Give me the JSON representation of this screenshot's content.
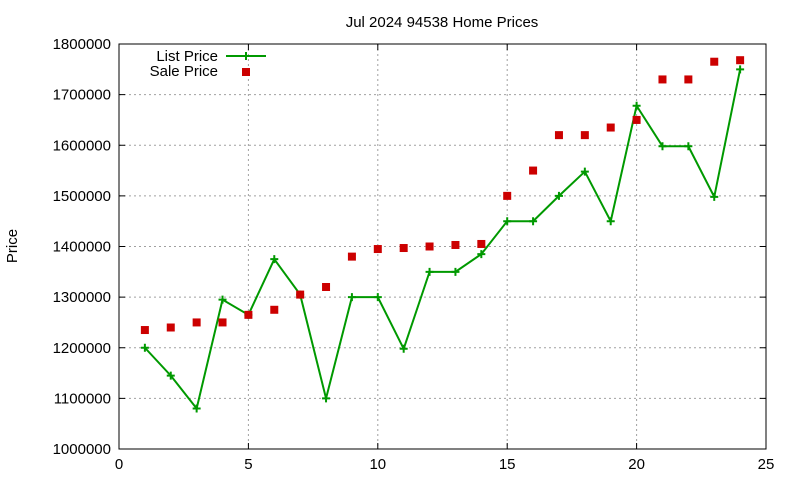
{
  "chart_data": {
    "type": "line",
    "title": "Jul 2024 94538 Home Prices",
    "xlabel": "",
    "ylabel": "Price",
    "xlim": [
      0,
      25
    ],
    "ylim": [
      1000000,
      1800000
    ],
    "x_ticks": [
      0,
      5,
      10,
      15,
      20,
      25
    ],
    "y_ticks": [
      1000000,
      1100000,
      1200000,
      1300000,
      1400000,
      1500000,
      1600000,
      1700000,
      1800000
    ],
    "grid": true,
    "legend_position": "top-left",
    "series": [
      {
        "name": "List Price",
        "style": "line+plus-markers",
        "color": "#009900",
        "x": [
          1,
          2,
          3,
          4,
          5,
          6,
          7,
          8,
          9,
          10,
          11,
          12,
          13,
          14,
          15,
          16,
          17,
          18,
          19,
          20,
          21,
          22,
          23,
          24
        ],
        "y": [
          1200000,
          1145000,
          1080000,
          1295000,
          1265000,
          1375000,
          1305000,
          1100000,
          1300000,
          1300000,
          1198000,
          1350000,
          1350000,
          1385000,
          1450000,
          1450000,
          1500000,
          1548000,
          1450000,
          1678000,
          1598000,
          1598000,
          1498000,
          1750000
        ]
      },
      {
        "name": "Sale Price",
        "style": "square-markers",
        "color": "#cc0000",
        "x": [
          1,
          2,
          3,
          4,
          5,
          6,
          7,
          8,
          9,
          10,
          11,
          12,
          13,
          14,
          15,
          16,
          17,
          18,
          19,
          20,
          21,
          22,
          23,
          24
        ],
        "y": [
          1235000,
          1240000,
          1250000,
          1250000,
          1265000,
          1275000,
          1305000,
          1320000,
          1380000,
          1395000,
          1397000,
          1400000,
          1403000,
          1405000,
          1500000,
          1550000,
          1620000,
          1620000,
          1635000,
          1650000,
          1730000,
          1730000,
          1765000,
          1768000
        ]
      }
    ]
  }
}
